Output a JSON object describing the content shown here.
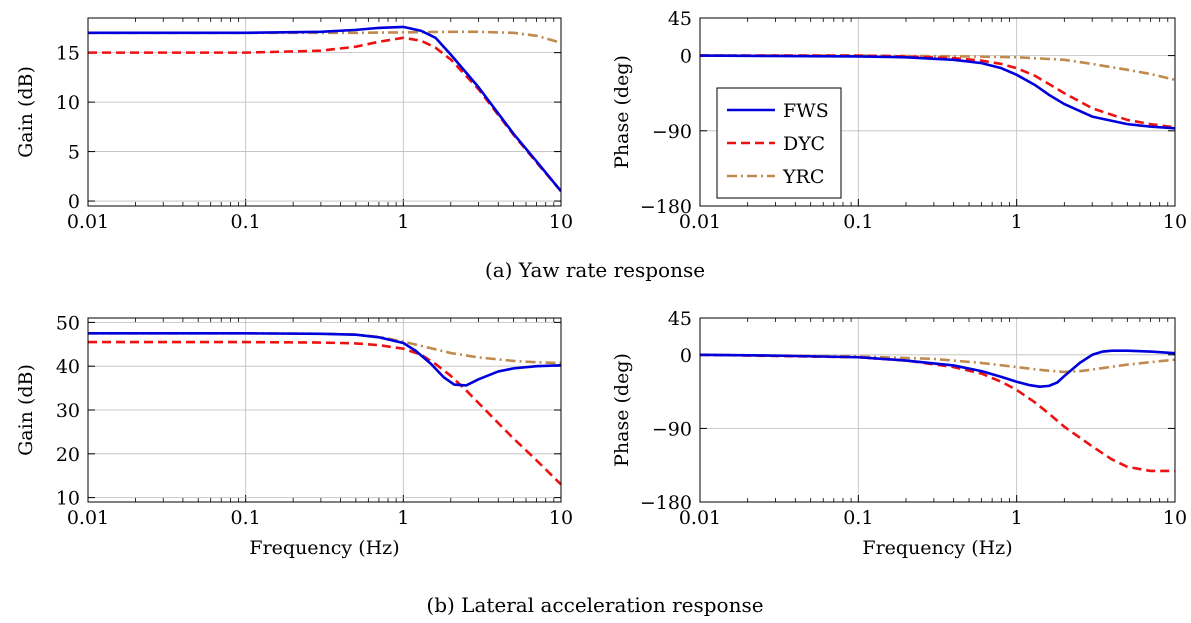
{
  "legend": {
    "entries": [
      {
        "label": "FWS",
        "color": "#0000dd",
        "dash": "solid"
      },
      {
        "label": "DYC",
        "color": "#ee1111",
        "dash": "dashed"
      },
      {
        "label": "YRC",
        "color": "#c08a4c",
        "dash": "dashdot"
      }
    ]
  },
  "captions": {
    "a": "(a) Yaw rate response",
    "b": "(b) Lateral acceleration response"
  },
  "chart_data": [
    {
      "type": "line",
      "xlabel": "",
      "ylabel": "Gain (dB)",
      "xscale": "log",
      "xlim": [
        0.01,
        10
      ],
      "ylim": [
        -0.5,
        18.5
      ],
      "xticks": [
        0.01,
        0.1,
        1,
        10
      ],
      "xticklabels": [
        "0.01",
        "0.1",
        "1",
        "10"
      ],
      "yticks": [
        0,
        5,
        10,
        15
      ],
      "yticklabels": [
        "0",
        "5",
        "10",
        "15"
      ],
      "grid": true,
      "series": [
        {
          "name": "FWS",
          "x": [
            0.01,
            0.1,
            0.3,
            0.5,
            0.7,
            1,
            1.3,
            1.6,
            2,
            3,
            5,
            7,
            10
          ],
          "y": [
            17,
            17,
            17.1,
            17.3,
            17.5,
            17.6,
            17.2,
            16.5,
            14.8,
            11.5,
            6.8,
            4,
            1
          ]
        },
        {
          "name": "DYC",
          "x": [
            0.01,
            0.1,
            0.3,
            0.5,
            0.7,
            1,
            1.3,
            1.6,
            2,
            3,
            5,
            7,
            10
          ],
          "y": [
            15,
            15,
            15.2,
            15.6,
            16.1,
            16.5,
            16.2,
            15.5,
            14.3,
            11.3,
            6.7,
            3.9,
            1
          ]
        },
        {
          "name": "YRC",
          "x": [
            0.01,
            0.1,
            0.5,
            1,
            2,
            3,
            5,
            7,
            10
          ],
          "y": [
            17,
            17,
            17,
            17.05,
            17.1,
            17.1,
            17,
            16.7,
            16
          ]
        }
      ]
    },
    {
      "type": "line",
      "xlabel": "",
      "ylabel": "Phase (deg)",
      "xscale": "log",
      "xlim": [
        0.01,
        10
      ],
      "ylim": [
        -180,
        45
      ],
      "xticks": [
        0.01,
        0.1,
        1,
        10
      ],
      "xticklabels": [
        "0.01",
        "0.1",
        "1",
        "10"
      ],
      "yticks": [
        45,
        0,
        -90,
        -180
      ],
      "yticklabels": [
        "45",
        "0",
        "−90",
        "−180"
      ],
      "grid": true,
      "legend_position": "lower-left",
      "series": [
        {
          "name": "FWS",
          "x": [
            0.01,
            0.1,
            0.2,
            0.4,
            0.6,
            0.8,
            1,
            1.3,
            1.6,
            2,
            3,
            5,
            7,
            10
          ],
          "y": [
            0,
            -1,
            -2,
            -5,
            -9,
            -15,
            -23,
            -35,
            -47,
            -58,
            -73,
            -82,
            -85,
            -87
          ]
        },
        {
          "name": "DYC",
          "x": [
            0.01,
            0.1,
            0.2,
            0.4,
            0.6,
            0.8,
            1,
            1.3,
            1.6,
            2,
            3,
            5,
            7,
            10
          ],
          "y": [
            0,
            0,
            -1,
            -3,
            -6,
            -10,
            -15,
            -24,
            -34,
            -45,
            -63,
            -77,
            -82,
            -86
          ]
        },
        {
          "name": "YRC",
          "x": [
            0.01,
            0.1,
            0.5,
            1,
            2,
            3,
            5,
            7,
            10
          ],
          "y": [
            0,
            0,
            -1,
            -2,
            -5,
            -10,
            -17,
            -22,
            -29
          ]
        }
      ]
    },
    {
      "type": "line",
      "xlabel": "Frequency (Hz)",
      "ylabel": "Gain (dB)",
      "xscale": "log",
      "xlim": [
        0.01,
        10
      ],
      "ylim": [
        9,
        51
      ],
      "xticks": [
        0.01,
        0.1,
        1,
        10
      ],
      "xticklabels": [
        "0.01",
        "0.1",
        "1",
        "10"
      ],
      "yticks": [
        10,
        20,
        30,
        40,
        50
      ],
      "yticklabels": [
        "10",
        "20",
        "30",
        "40",
        "50"
      ],
      "grid": true,
      "series": [
        {
          "name": "FWS",
          "x": [
            0.01,
            0.1,
            0.3,
            0.5,
            0.7,
            1,
            1.2,
            1.5,
            1.8,
            2.1,
            2.5,
            3,
            4,
            5,
            7,
            10
          ],
          "y": [
            47.5,
            47.5,
            47.4,
            47.2,
            46.6,
            45.3,
            43.5,
            40.5,
            37.5,
            35.8,
            35.6,
            37,
            38.8,
            39.5,
            40,
            40.2
          ]
        },
        {
          "name": "DYC",
          "x": [
            0.01,
            0.1,
            0.3,
            0.5,
            0.7,
            1,
            1.3,
            1.6,
            2,
            2.5,
            3,
            4,
            5,
            7,
            10
          ],
          "y": [
            45.5,
            45.5,
            45.4,
            45.2,
            44.8,
            44,
            42.6,
            40.5,
            37.8,
            34.5,
            31.6,
            27,
            23.5,
            18.5,
            13
          ]
        },
        {
          "name": "YRC",
          "x": [
            0.01,
            0.1,
            0.3,
            0.5,
            0.7,
            1,
            1.5,
            2,
            3,
            5,
            7,
            10
          ],
          "y": [
            47.5,
            47.5,
            47.4,
            47.2,
            46.7,
            45.6,
            44.1,
            43,
            42,
            41.2,
            40.9,
            40.7
          ]
        }
      ]
    },
    {
      "type": "line",
      "xlabel": "Frequency (Hz)",
      "ylabel": "Phase (deg)",
      "xscale": "log",
      "xlim": [
        0.01,
        10
      ],
      "ylim": [
        -180,
        45
      ],
      "xticks": [
        0.01,
        0.1,
        1,
        10
      ],
      "xticklabels": [
        "0.01",
        "0.1",
        "1",
        "10"
      ],
      "yticks": [
        45,
        0,
        -90,
        -180
      ],
      "yticklabels": [
        "45",
        "0",
        "−90",
        "−180"
      ],
      "grid": true,
      "series": [
        {
          "name": "FWS",
          "x": [
            0.01,
            0.03,
            0.1,
            0.2,
            0.4,
            0.6,
            0.8,
            1,
            1.2,
            1.4,
            1.6,
            1.8,
            2,
            2.5,
            3,
            3.5,
            4,
            5,
            7,
            10
          ],
          "y": [
            0,
            -1,
            -3,
            -7,
            -13,
            -20,
            -27,
            -33,
            -37,
            -39,
            -38,
            -34,
            -26,
            -10,
            0,
            4,
            5,
            5,
            4,
            2
          ]
        },
        {
          "name": "DYC",
          "x": [
            0.01,
            0.1,
            0.2,
            0.4,
            0.6,
            0.8,
            1,
            1.3,
            1.6,
            2,
            3,
            4,
            5,
            7,
            10
          ],
          "y": [
            0,
            -3,
            -7,
            -15,
            -23,
            -33,
            -43,
            -58,
            -72,
            -88,
            -112,
            -128,
            -137,
            -142,
            -142
          ]
        },
        {
          "name": "YRC",
          "x": [
            0.01,
            0.1,
            0.3,
            0.6,
            1,
            1.5,
            2,
            2.5,
            3,
            5,
            7,
            10
          ],
          "y": [
            0,
            -2,
            -5,
            -10,
            -15,
            -19,
            -21,
            -20,
            -18,
            -12,
            -9,
            -6
          ]
        }
      ]
    }
  ]
}
